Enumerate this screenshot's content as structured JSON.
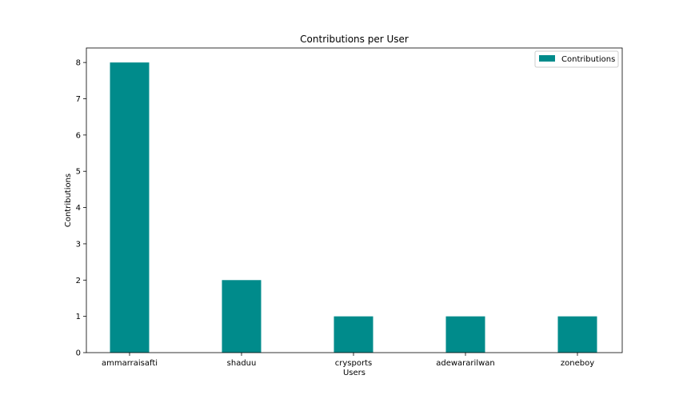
{
  "chart_data": {
    "type": "bar",
    "title": "Contributions per User",
    "xlabel": "Users",
    "ylabel": "Contributions",
    "categories": [
      "ammarraisafti",
      "shaduu",
      "crysports",
      "adewararilwan",
      "zoneboy"
    ],
    "series": [
      {
        "name": "Contributions",
        "values": [
          8,
          2,
          1,
          1,
          1
        ],
        "color": "#008b8b"
      }
    ],
    "ylim": [
      0,
      8.4
    ],
    "yticks": [
      0,
      1,
      2,
      3,
      4,
      5,
      6,
      7,
      8
    ],
    "grid": false,
    "legend": "top-right"
  }
}
